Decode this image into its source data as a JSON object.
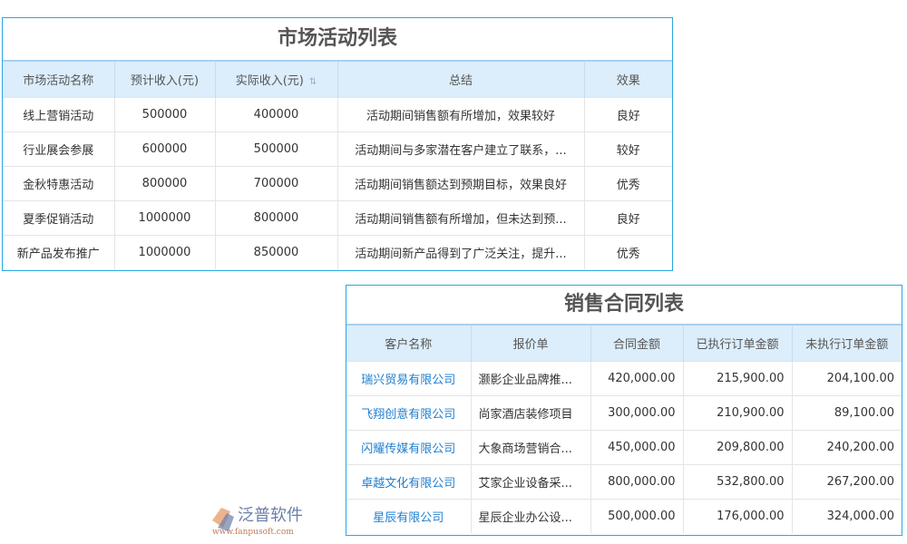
{
  "marketing": {
    "title": "市场活动列表",
    "headers": [
      "市场活动名称",
      "预计收入(元)",
      "实际收入(元)",
      "总结",
      "效果"
    ],
    "rows": [
      [
        "线上营销活动",
        "500000",
        "400000",
        "活动期间销售额有所增加，效果较好",
        "良好"
      ],
      [
        "行业展会参展",
        "600000",
        "500000",
        "活动期间与多家潜在客户建立了联系，...",
        "较好"
      ],
      [
        "金秋特惠活动",
        "800000",
        "700000",
        "活动期间销售额达到预期目标，效果良好",
        "优秀"
      ],
      [
        "夏季促销活动",
        "1000000",
        "800000",
        "活动期间销售额有所增加，但未达到预...",
        "良好"
      ],
      [
        "新产品发布推广",
        "1000000",
        "850000",
        "活动期间新产品得到了广泛关注，提升...",
        "优秀"
      ]
    ]
  },
  "contracts": {
    "title": "销售合同列表",
    "headers": [
      "客户名称",
      "报价单",
      "合同金额",
      "已执行订单金额",
      "未执行订单金额"
    ],
    "rows": [
      [
        "瑞兴贸易有限公司",
        "灏影企业品牌推...",
        "420,000.00",
        "215,900.00",
        "204,100.00"
      ],
      [
        "飞翔创意有限公司",
        "尚家酒店装修项目",
        "300,000.00",
        "210,900.00",
        "89,100.00"
      ],
      [
        "闪耀传媒有限公司",
        "大象商场营销合...",
        "450,000.00",
        "209,800.00",
        "240,200.00"
      ],
      [
        "卓越文化有限公司",
        "艾家企业设备采...",
        "800,000.00",
        "532,800.00",
        "267,200.00"
      ],
      [
        "星辰有限公司",
        "星辰企业办公设...",
        "500,000.00",
        "176,000.00",
        "324,000.00"
      ]
    ]
  },
  "watermark": {
    "name": "泛普软件",
    "url": "www.fanpusoft.com"
  },
  "colors": {
    "accent": "#29a8e0",
    "header_bg": "#dcedfb",
    "link": "#1f7fd0"
  }
}
